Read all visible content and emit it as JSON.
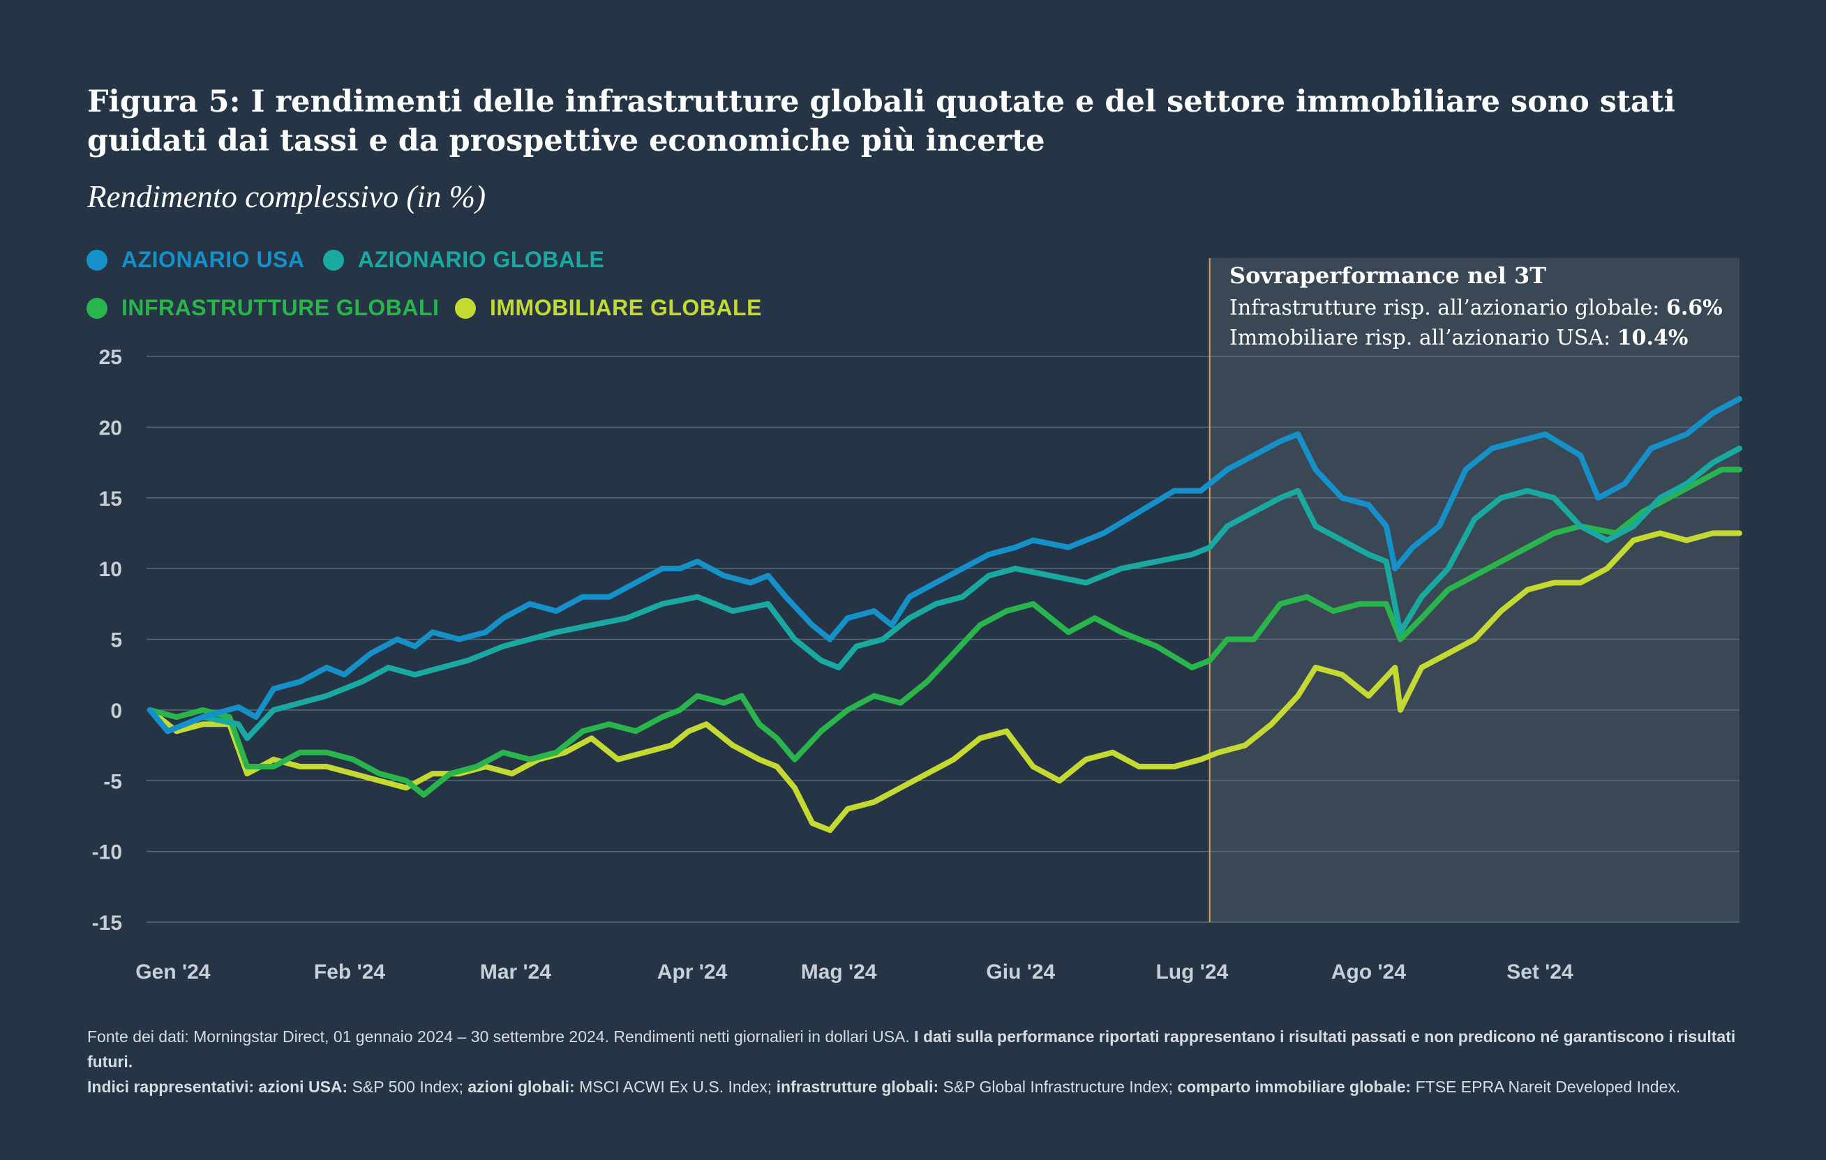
{
  "title": "Figura 5: I rendimenti delle infrastrutture globali quotate e del settore immobiliare sono stati guidati dai tassi e da prospettive economiche più incerte",
  "subtitle": "Rendimento complessivo (in %)",
  "legend": [
    {
      "label": "AZIONARIO USA",
      "color": "#1590c8"
    },
    {
      "label": "AZIONARIO GLOBALE",
      "color": "#1aa9a0"
    },
    {
      "label": "INFRASTRUTTURE GLOBALI",
      "color": "#2ab54c"
    },
    {
      "label": "IMMOBILIARE GLOBALE",
      "color": "#c4d932"
    }
  ],
  "callout": {
    "heading": "Sovraperformance nel 3T",
    "row1_label": "Infrastrutture risp. all’azionario globale:",
    "row1_value": "6.6%",
    "row2_label": "Immobiliare risp. all’azionario USA:",
    "row2_value": "10.4%"
  },
  "footer": {
    "l1_normal": "Fonte dei dati: Morningstar Direct, 01 gennaio 2024 – 30 settembre 2024. Rendimenti netti giornalieri in dollari USA.",
    "l1_bold": "I dati sulla performance riportati rappresentano i risultati passati e non predicono né garantiscono i risultati futuri.",
    "l2_b1": "Indici rappresentativi: azioni USA:",
    "l2_t1": "S&P 500 Index;",
    "l2_b2": "azioni globali:",
    "l2_t2": "MSCI ACWI Ex U.S. Index;",
    "l2_b3": "infrastrutture globali:",
    "l2_t3": "S&P Global Infrastructure Index;",
    "l2_b4": "comparto immobiliare globale:",
    "l2_t4": "FTSE EPRA Nareit Developed Index."
  },
  "chart_data": {
    "type": "line",
    "ylim": [
      -15,
      25
    ],
    "yticks": [
      25,
      20,
      15,
      10,
      5,
      0,
      -5,
      -10,
      -15
    ],
    "x_range": [
      0,
      9
    ],
    "x_ticks": [
      {
        "label": "Gen '24",
        "pos": 0.13
      },
      {
        "label": "Feb '24",
        "pos": 1.13
      },
      {
        "label": "Mar '24",
        "pos": 2.07
      },
      {
        "label": "Apr '24",
        "pos": 3.07
      },
      {
        "label": "Mag '24",
        "pos": 3.9
      },
      {
        "label": "Giu '24",
        "pos": 4.93
      },
      {
        "label": "Lug '24",
        "pos": 5.9
      },
      {
        "label": "Ago '24",
        "pos": 6.9
      },
      {
        "label": "Set '24",
        "pos": 7.87
      }
    ],
    "highlight": {
      "start": 6.0,
      "end": 9.0
    },
    "series": [
      {
        "name": "AZIONARIO USA",
        "color": "#1590c8",
        "points": [
          [
            0,
            0
          ],
          [
            0.1,
            -1.5
          ],
          [
            0.3,
            -0.5
          ],
          [
            0.5,
            0.2
          ],
          [
            0.6,
            -0.5
          ],
          [
            0.7,
            1.5
          ],
          [
            0.85,
            2
          ],
          [
            1,
            3
          ],
          [
            1.1,
            2.5
          ],
          [
            1.25,
            4
          ],
          [
            1.4,
            5
          ],
          [
            1.5,
            4.5
          ],
          [
            1.6,
            5.5
          ],
          [
            1.75,
            5
          ],
          [
            1.9,
            5.5
          ],
          [
            2,
            6.5
          ],
          [
            2.15,
            7.5
          ],
          [
            2.3,
            7
          ],
          [
            2.45,
            8
          ],
          [
            2.6,
            8
          ],
          [
            2.75,
            9
          ],
          [
            2.9,
            10
          ],
          [
            3,
            10
          ],
          [
            3.1,
            10.5
          ],
          [
            3.25,
            9.5
          ],
          [
            3.4,
            9
          ],
          [
            3.5,
            9.5
          ],
          [
            3.6,
            8
          ],
          [
            3.75,
            6
          ],
          [
            3.85,
            5
          ],
          [
            3.95,
            6.5
          ],
          [
            4.1,
            7
          ],
          [
            4.2,
            6
          ],
          [
            4.3,
            8
          ],
          [
            4.45,
            9
          ],
          [
            4.6,
            10
          ],
          [
            4.75,
            11
          ],
          [
            4.9,
            11.5
          ],
          [
            5,
            12
          ],
          [
            5.2,
            11.5
          ],
          [
            5.4,
            12.5
          ],
          [
            5.6,
            14
          ],
          [
            5.8,
            15.5
          ],
          [
            5.95,
            15.5
          ],
          [
            6.1,
            17
          ],
          [
            6.25,
            18
          ],
          [
            6.4,
            19
          ],
          [
            6.5,
            19.5
          ],
          [
            6.6,
            17
          ],
          [
            6.75,
            15
          ],
          [
            6.9,
            14.5
          ],
          [
            7,
            13
          ],
          [
            7.05,
            10
          ],
          [
            7.15,
            11.5
          ],
          [
            7.3,
            13
          ],
          [
            7.45,
            17
          ],
          [
            7.6,
            18.5
          ],
          [
            7.75,
            19
          ],
          [
            7.9,
            19.5
          ],
          [
            8.1,
            18
          ],
          [
            8.2,
            15
          ],
          [
            8.35,
            16
          ],
          [
            8.5,
            18.5
          ],
          [
            8.7,
            19.5
          ],
          [
            8.85,
            21
          ],
          [
            9,
            22
          ]
        ]
      },
      {
        "name": "AZIONARIO GLOBALE",
        "color": "#1aa9a0",
        "points": [
          [
            0,
            0
          ],
          [
            0.1,
            -1.5
          ],
          [
            0.3,
            -0.5
          ],
          [
            0.5,
            -1
          ],
          [
            0.55,
            -2
          ],
          [
            0.7,
            0
          ],
          [
            0.85,
            0.5
          ],
          [
            1,
            1
          ],
          [
            1.2,
            2
          ],
          [
            1.35,
            3
          ],
          [
            1.5,
            2.5
          ],
          [
            1.65,
            3
          ],
          [
            1.8,
            3.5
          ],
          [
            1.9,
            4
          ],
          [
            2,
            4.5
          ],
          [
            2.15,
            5
          ],
          [
            2.3,
            5.5
          ],
          [
            2.5,
            6
          ],
          [
            2.7,
            6.5
          ],
          [
            2.9,
            7.5
          ],
          [
            3.1,
            8
          ],
          [
            3.3,
            7
          ],
          [
            3.5,
            7.5
          ],
          [
            3.65,
            5
          ],
          [
            3.8,
            3.5
          ],
          [
            3.9,
            3
          ],
          [
            4,
            4.5
          ],
          [
            4.15,
            5
          ],
          [
            4.3,
            6.5
          ],
          [
            4.45,
            7.5
          ],
          [
            4.6,
            8
          ],
          [
            4.75,
            9.5
          ],
          [
            4.9,
            10
          ],
          [
            5.1,
            9.5
          ],
          [
            5.3,
            9
          ],
          [
            5.5,
            10
          ],
          [
            5.7,
            10.5
          ],
          [
            5.9,
            11
          ],
          [
            6,
            11.5
          ],
          [
            6.1,
            13
          ],
          [
            6.25,
            14
          ],
          [
            6.4,
            15
          ],
          [
            6.5,
            15.5
          ],
          [
            6.6,
            13
          ],
          [
            6.75,
            12
          ],
          [
            6.9,
            11
          ],
          [
            7,
            10.5
          ],
          [
            7.08,
            5.5
          ],
          [
            7.2,
            8
          ],
          [
            7.35,
            10
          ],
          [
            7.5,
            13.5
          ],
          [
            7.65,
            15
          ],
          [
            7.8,
            15.5
          ],
          [
            7.95,
            15
          ],
          [
            8.1,
            13
          ],
          [
            8.25,
            12
          ],
          [
            8.4,
            13
          ],
          [
            8.55,
            15
          ],
          [
            8.7,
            16
          ],
          [
            8.85,
            17.5
          ],
          [
            9,
            18.5
          ]
        ]
      },
      {
        "name": "INFRASTRUTTURE GLOBALI",
        "color": "#2ab54c",
        "points": [
          [
            0,
            0
          ],
          [
            0.15,
            -0.5
          ],
          [
            0.3,
            0
          ],
          [
            0.45,
            -0.5
          ],
          [
            0.55,
            -4
          ],
          [
            0.7,
            -4
          ],
          [
            0.85,
            -3
          ],
          [
            1,
            -3
          ],
          [
            1.15,
            -3.5
          ],
          [
            1.3,
            -4.5
          ],
          [
            1.45,
            -5
          ],
          [
            1.55,
            -6
          ],
          [
            1.7,
            -4.5
          ],
          [
            1.85,
            -4
          ],
          [
            2,
            -3
          ],
          [
            2.15,
            -3.5
          ],
          [
            2.3,
            -3
          ],
          [
            2.45,
            -1.5
          ],
          [
            2.6,
            -1
          ],
          [
            2.75,
            -1.5
          ],
          [
            2.9,
            -0.5
          ],
          [
            3,
            0
          ],
          [
            3.1,
            1
          ],
          [
            3.25,
            0.5
          ],
          [
            3.35,
            1
          ],
          [
            3.45,
            -1
          ],
          [
            3.55,
            -2
          ],
          [
            3.65,
            -3.5
          ],
          [
            3.8,
            -1.5
          ],
          [
            3.95,
            0
          ],
          [
            4.1,
            1
          ],
          [
            4.25,
            0.5
          ],
          [
            4.4,
            2
          ],
          [
            4.55,
            4
          ],
          [
            4.7,
            6
          ],
          [
            4.85,
            7
          ],
          [
            5,
            7.5
          ],
          [
            5.2,
            5.5
          ],
          [
            5.35,
            6.5
          ],
          [
            5.5,
            5.5
          ],
          [
            5.7,
            4.5
          ],
          [
            5.9,
            3
          ],
          [
            6,
            3.5
          ],
          [
            6.1,
            5
          ],
          [
            6.25,
            5
          ],
          [
            6.4,
            7.5
          ],
          [
            6.55,
            8
          ],
          [
            6.7,
            7
          ],
          [
            6.85,
            7.5
          ],
          [
            7,
            7.5
          ],
          [
            7.08,
            5
          ],
          [
            7.2,
            6.5
          ],
          [
            7.35,
            8.5
          ],
          [
            7.5,
            9.5
          ],
          [
            7.65,
            10.5
          ],
          [
            7.8,
            11.5
          ],
          [
            7.95,
            12.5
          ],
          [
            8.1,
            13
          ],
          [
            8.3,
            12.5
          ],
          [
            8.45,
            14
          ],
          [
            8.6,
            15
          ],
          [
            8.75,
            16
          ],
          [
            8.9,
            17
          ],
          [
            9,
            17
          ]
        ]
      },
      {
        "name": "IMMOBILIARE GLOBALE",
        "color": "#c4d932",
        "points": [
          [
            0,
            0
          ],
          [
            0.15,
            -1.5
          ],
          [
            0.3,
            -1
          ],
          [
            0.45,
            -1
          ],
          [
            0.55,
            -4.5
          ],
          [
            0.7,
            -3.5
          ],
          [
            0.85,
            -4
          ],
          [
            1,
            -4
          ],
          [
            1.15,
            -4.5
          ],
          [
            1.3,
            -5
          ],
          [
            1.45,
            -5.5
          ],
          [
            1.6,
            -4.5
          ],
          [
            1.75,
            -4.5
          ],
          [
            1.9,
            -4
          ],
          [
            2.05,
            -4.5
          ],
          [
            2.2,
            -3.5
          ],
          [
            2.35,
            -3
          ],
          [
            2.5,
            -2
          ],
          [
            2.65,
            -3.5
          ],
          [
            2.8,
            -3
          ],
          [
            2.95,
            -2.5
          ],
          [
            3.05,
            -1.5
          ],
          [
            3.15,
            -1
          ],
          [
            3.3,
            -2.5
          ],
          [
            3.45,
            -3.5
          ],
          [
            3.55,
            -4
          ],
          [
            3.65,
            -5.5
          ],
          [
            3.75,
            -8
          ],
          [
            3.85,
            -8.5
          ],
          [
            3.95,
            -7
          ],
          [
            4.1,
            -6.5
          ],
          [
            4.25,
            -5.5
          ],
          [
            4.4,
            -4.5
          ],
          [
            4.55,
            -3.5
          ],
          [
            4.7,
            -2
          ],
          [
            4.85,
            -1.5
          ],
          [
            5,
            -4
          ],
          [
            5.15,
            -5
          ],
          [
            5.3,
            -3.5
          ],
          [
            5.45,
            -3
          ],
          [
            5.6,
            -4
          ],
          [
            5.8,
            -4
          ],
          [
            5.95,
            -3.5
          ],
          [
            6.05,
            -3
          ],
          [
            6.2,
            -2.5
          ],
          [
            6.35,
            -1
          ],
          [
            6.5,
            1
          ],
          [
            6.6,
            3
          ],
          [
            6.75,
            2.5
          ],
          [
            6.9,
            1
          ],
          [
            7.05,
            3
          ],
          [
            7.08,
            0
          ],
          [
            7.2,
            3
          ],
          [
            7.35,
            4
          ],
          [
            7.5,
            5
          ],
          [
            7.65,
            7
          ],
          [
            7.8,
            8.5
          ],
          [
            7.95,
            9
          ],
          [
            8.1,
            9
          ],
          [
            8.25,
            10
          ],
          [
            8.4,
            12
          ],
          [
            8.55,
            12.5
          ],
          [
            8.7,
            12
          ],
          [
            8.85,
            12.5
          ],
          [
            9,
            12.5
          ]
        ]
      }
    ]
  }
}
